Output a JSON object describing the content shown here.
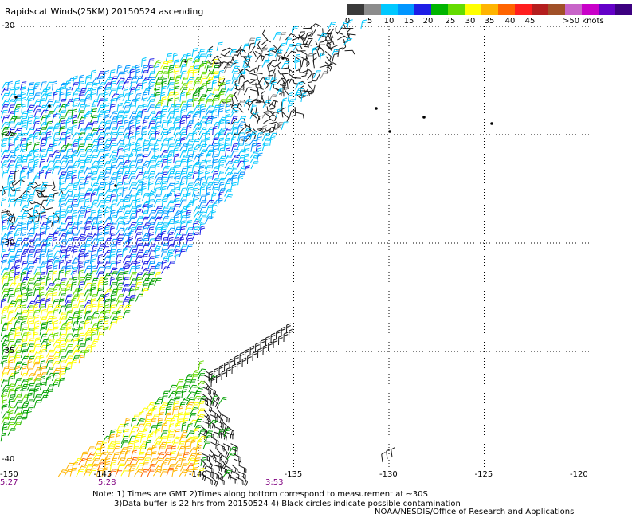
{
  "title": "Rapidscat Winds(25KM) 20150524 ascending",
  "colorbar": {
    "colors": [
      "#3a3a3a",
      "#8c8c8c",
      "#00c8ff",
      "#0096ff",
      "#1e1ee6",
      "#00b400",
      "#64dc00",
      "#ffff00",
      "#ffb400",
      "#ff6400",
      "#ff1e1e",
      "#b41e1e",
      "#a05028",
      "#c864c8",
      "#c800c8",
      "#6400c8",
      "#3c0080"
    ],
    "labels": [
      "0",
      "5",
      "10",
      "15",
      "20",
      "25",
      "30",
      "35",
      "40",
      "45",
      ">50 knots"
    ],
    "unit": "knots"
  },
  "axes": {
    "lat_labels": [
      "-20",
      "-25",
      "-30",
      "-35",
      "-40"
    ],
    "lon_labels": [
      "-150",
      "-145",
      "-140",
      "-135",
      "-130",
      "-125",
      "-120"
    ],
    "time_labels": [
      "5:27",
      "5:28",
      "3:53"
    ]
  },
  "notes": {
    "line1": "Note: 1) Times are GMT 2)Times along bottom correspond to measurement at ~30S",
    "line2": "3)Data buffer is 22 hrs from 20150524 4) Black circles indicate possible contamination"
  },
  "credit": "NOAA/NESDIS/Office of Research and Applications",
  "chart_data": {
    "type": "wind-barb-map",
    "lon_range": [
      -150,
      -120
    ],
    "lat_range": [
      -40,
      -20
    ],
    "grid": true,
    "speed_bins_knots": [
      0,
      5,
      10,
      15,
      20,
      25,
      30,
      35,
      40,
      45,
      50
    ]
  }
}
